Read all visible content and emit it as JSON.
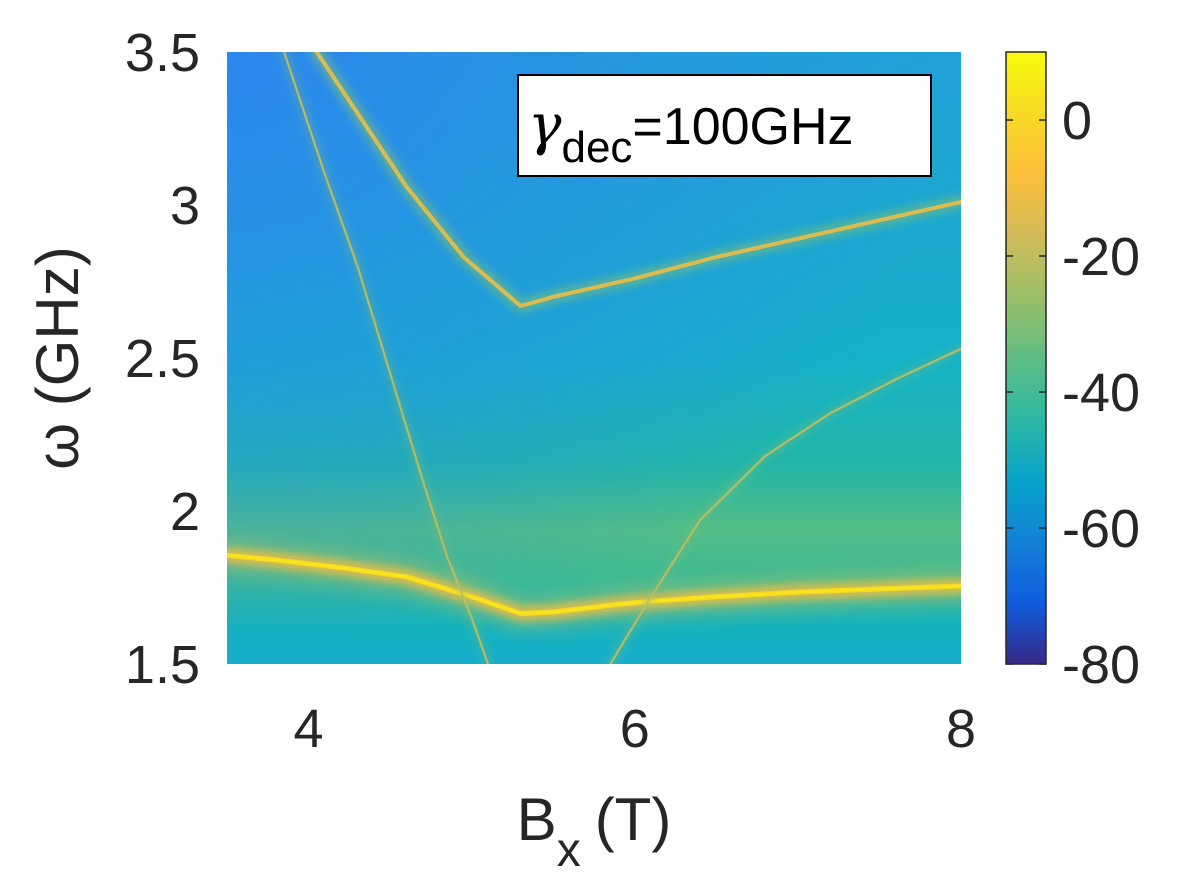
{
  "chart_data": {
    "type": "heatmap",
    "xlabel": "B",
    "xlabel_subscript": "x",
    "xlabel_unit": "(T)",
    "ylabel": "ω (GHz)",
    "xlim": [
      3.5,
      8
    ],
    "ylim": [
      1.5,
      3.5
    ],
    "x_ticks": [
      4,
      6,
      8
    ],
    "x_tick_labels": [
      "4",
      "6",
      "8"
    ],
    "y_ticks": [
      1.5,
      2,
      2.5,
      3,
      3.5
    ],
    "y_tick_labels": [
      "1.5",
      "2",
      "2.5",
      "3",
      "3.5"
    ],
    "colorbar": {
      "range": [
        -80,
        10
      ],
      "ticks": [
        -80,
        -60,
        -40,
        -20,
        0
      ],
      "tick_labels": [
        "-80",
        "-60",
        "-40",
        "-20",
        "0"
      ],
      "colormap": "parula"
    },
    "annotation": {
      "symbol": "γ",
      "subscript": "dec",
      "text": "=100GHz",
      "location": "top-right"
    },
    "grid": false,
    "background_levels": [
      {
        "x": 3.5,
        "y": 3.5,
        "value": -55
      },
      {
        "x": 8.0,
        "y": 3.5,
        "value": -45
      },
      {
        "x": 5.5,
        "y": 2.5,
        "value": -42
      },
      {
        "x": 5.5,
        "y": 1.9,
        "value": -28
      },
      {
        "x": 5.5,
        "y": 1.5,
        "value": -38
      }
    ],
    "series": [
      {
        "name": "upper branch",
        "peak_value": -15,
        "points": [
          [
            4.05,
            3.5
          ],
          [
            4.3,
            3.3
          ],
          [
            4.6,
            3.06
          ],
          [
            4.95,
            2.83
          ],
          [
            5.3,
            2.67
          ],
          [
            5.5,
            2.7
          ],
          [
            6.0,
            2.76
          ],
          [
            6.5,
            2.83
          ],
          [
            7.0,
            2.89
          ],
          [
            7.5,
            2.95
          ],
          [
            8.0,
            3.01
          ]
        ]
      },
      {
        "name": "lower branch",
        "peak_value": 4,
        "points": [
          [
            3.5,
            1.855
          ],
          [
            3.8,
            1.84
          ],
          [
            4.2,
            1.815
          ],
          [
            4.6,
            1.785
          ],
          [
            5.0,
            1.72
          ],
          [
            5.3,
            1.665
          ],
          [
            5.5,
            1.67
          ],
          [
            5.9,
            1.695
          ],
          [
            6.1,
            1.705
          ],
          [
            6.5,
            1.72
          ],
          [
            7.0,
            1.735
          ],
          [
            7.5,
            1.745
          ],
          [
            8.0,
            1.755
          ]
        ]
      },
      {
        "name": "descending thin line",
        "peak_value": -20,
        "points": [
          [
            3.85,
            3.5
          ],
          [
            4.1,
            3.1
          ],
          [
            4.3,
            2.8
          ],
          [
            4.5,
            2.45
          ],
          [
            4.7,
            2.1
          ],
          [
            4.85,
            1.85
          ],
          [
            5.0,
            1.65
          ],
          [
            5.1,
            1.5
          ]
        ]
      },
      {
        "name": "ascending thin line",
        "peak_value": -20,
        "points": [
          [
            5.85,
            1.5
          ],
          [
            6.1,
            1.72
          ],
          [
            6.4,
            1.97
          ],
          [
            6.8,
            2.18
          ],
          [
            7.2,
            2.32
          ],
          [
            7.6,
            2.43
          ],
          [
            8.0,
            2.53
          ]
        ]
      }
    ]
  }
}
